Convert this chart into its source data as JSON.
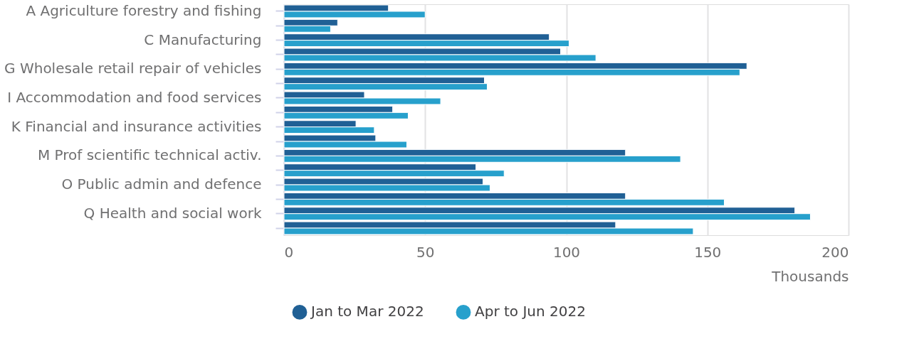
{
  "chart_data": {
    "type": "bar",
    "orientation": "horizontal",
    "categories": [
      "A Agriculture forestry and fishing",
      null,
      "C Manufacturing",
      null,
      "G Wholesale retail repair of vehicles",
      null,
      "I Accommodation and food services",
      null,
      "K Financial and insurance activities",
      null,
      "M Prof scientific technical activ.",
      null,
      "O Public admin and defence",
      null,
      "Q Health and social work",
      null
    ],
    "series": [
      {
        "name": "Jan to Mar 2022",
        "color": "#206095",
        "values": [
          37,
          19,
          94,
          98,
          164,
          71,
          28.5,
          38.5,
          25.5,
          32.5,
          121,
          68,
          70.5,
          121,
          181,
          117.5
        ]
      },
      {
        "name": "Apr to Jun 2022",
        "color": "#27a0cc",
        "values": [
          50,
          16.5,
          101,
          110.5,
          161.5,
          72,
          55.5,
          44,
          32,
          43.5,
          140.5,
          78,
          73,
          156,
          186.5,
          145
        ]
      }
    ],
    "xlabel": "Thousands",
    "xlim": [
      0,
      200
    ],
    "xticks": [
      0,
      50,
      100,
      150,
      200
    ],
    "grid": "x",
    "legend": "bottom"
  }
}
